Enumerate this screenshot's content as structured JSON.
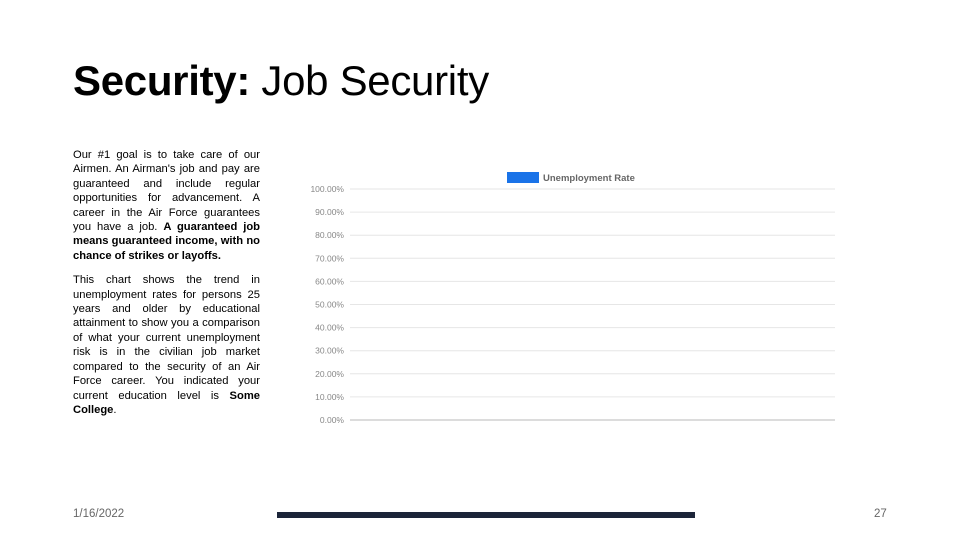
{
  "slide": {
    "title_strong": "Security:",
    "title_rest": " Job Security",
    "para1": {
      "text": "Our #1 goal is to take care of our Airmen. An Airman's job and pay are guaranteed and include regular opportunities for advancement. A career in the Air Force guarantees you have a job. ",
      "bold": "A guaranteed job means guaranteed income, with no chance of strikes or layoffs."
    },
    "para2": {
      "text": "This chart shows the trend in unemployment rates for persons 25 years and older by educational attainment to show you a comparison of what your current unemployment risk is in the civilian job market compared to the security of an Air Force career. You indicated your current education level is ",
      "bold": "Some College",
      "end": "."
    },
    "footer": {
      "date": "1/16/2022",
      "page": "27"
    }
  },
  "colors": {
    "series": "#1a73e8",
    "footer_bar": "#1c2539",
    "grid": "#e6e6e6",
    "axis_text": "#888888"
  },
  "chart_data": {
    "type": "line",
    "title": "",
    "xlabel": "",
    "ylabel": "",
    "ylim": [
      0,
      100
    ],
    "y_ticks": [
      "100.00%",
      "90.00%",
      "80.00%",
      "70.00%",
      "60.00%",
      "50.00%",
      "40.00%",
      "30.00%",
      "20.00%",
      "10.00%",
      "0.00%"
    ],
    "grid": true,
    "legend": "top",
    "series": [
      {
        "name": "Unemployment Rate",
        "values": []
      }
    ]
  }
}
